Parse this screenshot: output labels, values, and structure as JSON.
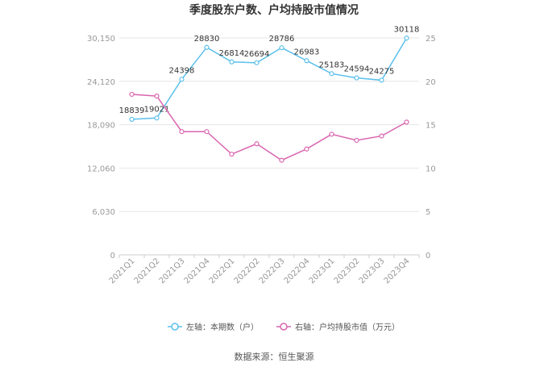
{
  "chart_data": {
    "type": "line",
    "title": "季度股东户数、户均持股市值情况",
    "categories": [
      "2021Q1",
      "2021Q2",
      "2021Q3",
      "2021Q4",
      "2022Q1",
      "2022Q2",
      "2022Q3",
      "2022Q4",
      "2023Q1",
      "2023Q2",
      "2023Q3",
      "2023Q4"
    ],
    "series": [
      {
        "name": "左轴：本期数（户）",
        "axis": "left",
        "color": "#5bc0eb",
        "values": [
          18839,
          19021,
          24398,
          28830,
          26814,
          26694,
          28786,
          26983,
          25183,
          24594,
          24275,
          30118
        ],
        "labels": [
          "18839",
          "19021",
          "24398",
          "28830",
          "26814",
          "26694",
          "28786",
          "26983",
          "25183",
          "24594",
          "24275",
          "30118"
        ]
      },
      {
        "name": "右轴：户均持股市值（万元）",
        "axis": "right",
        "color": "#d966b0",
        "values": [
          18.5,
          18.3,
          14.2,
          14.2,
          11.6,
          12.8,
          10.9,
          12.2,
          13.9,
          13.2,
          13.7,
          15.3
        ]
      }
    ],
    "y_left": {
      "ylim": [
        0,
        30150
      ],
      "ticks": [
        "0",
        "6,030",
        "12,060",
        "18,090",
        "24,120",
        "30,150"
      ]
    },
    "y_right": {
      "ylim": [
        0,
        25
      ],
      "ticks": [
        "0",
        "5",
        "10",
        "15",
        "20",
        "25"
      ]
    },
    "grid": true,
    "legend_position": "bottom"
  },
  "source": "数据来源：恒生聚源"
}
